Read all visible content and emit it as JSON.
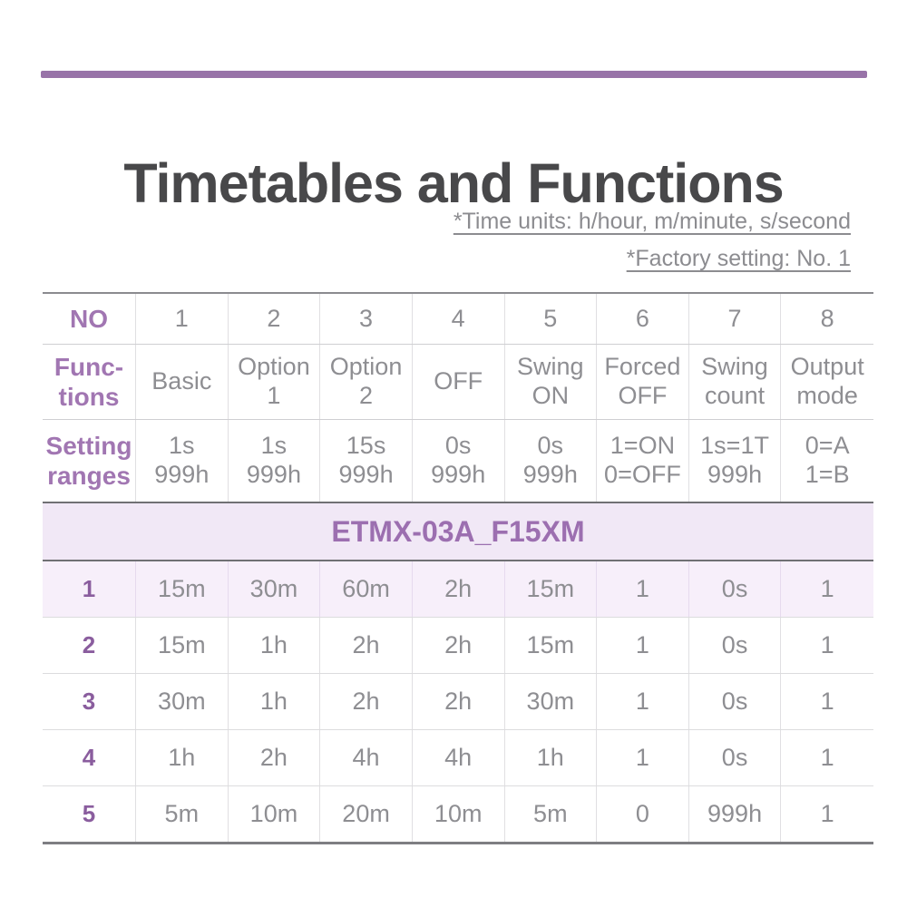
{
  "colors": {
    "accent_purple": "#9873a8",
    "header_text_purple": "#a176b2",
    "row_number_purple": "#8a5d9e",
    "model_row_bg": "#f1e8f6",
    "highlight_row_bg": "#f7effa",
    "value_text_gray": "#8e8e92",
    "title_text": "#48484a"
  },
  "title": "Timetables and Functions",
  "notes": {
    "time_units": "*Time units: h/hour, m/minute, s/second",
    "factory_setting": "*Factory setting: No. 1"
  },
  "table": {
    "header": {
      "no_label": "NO",
      "numbers": [
        "1",
        "2",
        "3",
        "4",
        "5",
        "6",
        "7",
        "8"
      ],
      "functions_label": "Func-\ntions",
      "functions": [
        "Basic",
        "Option 1",
        "Option 2",
        "OFF",
        "Swing ON",
        "Forced OFF",
        "Swing count",
        "Output mode"
      ],
      "ranges_label": "Setting\nranges",
      "ranges": [
        "1s\n999h",
        "1s\n999h",
        "15s\n999h",
        "0s\n999h",
        "0s\n999h",
        "1=ON\n0=OFF",
        "1s=1T\n999h",
        "0=A\n1=B"
      ]
    },
    "model": "ETMX-03A_F15XM",
    "rows": [
      {
        "no": "1",
        "values": [
          "15m",
          "30m",
          "60m",
          "2h",
          "15m",
          "1",
          "0s",
          "1"
        ]
      },
      {
        "no": "2",
        "values": [
          "15m",
          "1h",
          "2h",
          "2h",
          "15m",
          "1",
          "0s",
          "1"
        ]
      },
      {
        "no": "3",
        "values": [
          "30m",
          "1h",
          "2h",
          "2h",
          "30m",
          "1",
          "0s",
          "1"
        ]
      },
      {
        "no": "4",
        "values": [
          "1h",
          "2h",
          "4h",
          "4h",
          "1h",
          "1",
          "0s",
          "1"
        ]
      },
      {
        "no": "5",
        "values": [
          "5m",
          "10m",
          "20m",
          "10m",
          "5m",
          "0",
          "999h",
          "1"
        ]
      }
    ]
  }
}
